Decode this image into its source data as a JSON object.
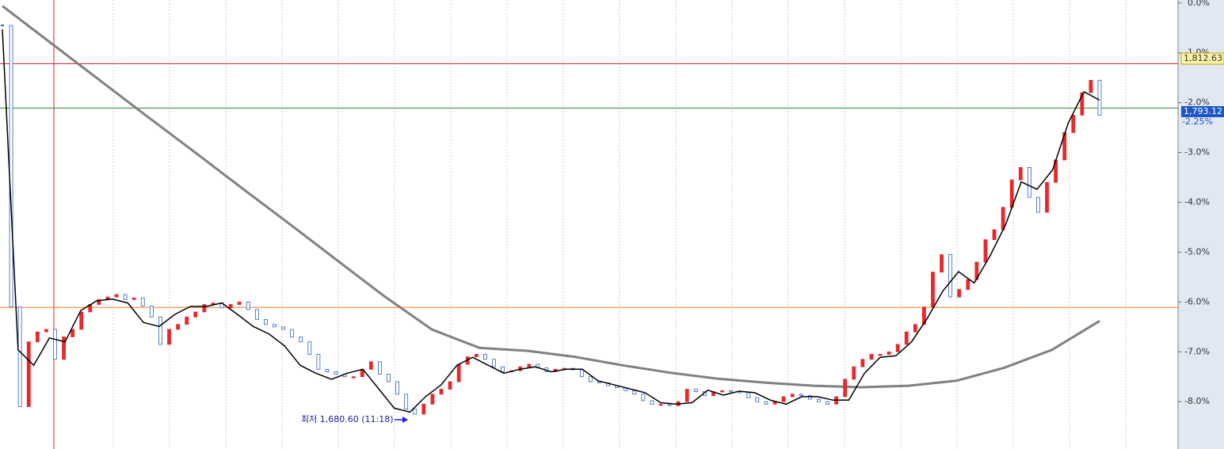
{
  "chart_data": {
    "type": "candlestick",
    "ylim": [
      -8.95,
      0.06
    ],
    "yticks": [
      {
        "value": 0,
        "label": "0.0%"
      },
      {
        "value": -1,
        "label": "-1.0%"
      },
      {
        "value": -2,
        "label": "-2.0%"
      },
      {
        "value": -3,
        "label": "-3.0%"
      },
      {
        "value": -4,
        "label": "-4.0%"
      },
      {
        "value": -5,
        "label": "-5.0%"
      },
      {
        "value": -6,
        "label": "-6.0%"
      },
      {
        "value": -7,
        "label": "-7.0%"
      },
      {
        "value": -8,
        "label": "-8.0%"
      }
    ],
    "up_color": "#e8282b",
    "down_color": "#2a62c4",
    "values": [
      -0.45,
      -6.1,
      -8.1,
      -6.8,
      -6.6,
      -6.55,
      -7.15,
      -6.7,
      -6.55,
      -6.2,
      -6.05,
      -5.95,
      -5.9,
      -5.85,
      -5.95,
      -5.92,
      -6.08,
      -6.3,
      -6.85,
      -6.55,
      -6.45,
      -6.3,
      -6.2,
      -6.05,
      -6.02,
      -6.12,
      -6.05,
      -6.0,
      -6.15,
      -6.35,
      -6.45,
      -6.5,
      -6.55,
      -6.7,
      -6.8,
      -7.05,
      -7.35,
      -7.4,
      -7.45,
      -7.5,
      -7.5,
      -7.35,
      -7.2,
      -7.45,
      -7.6,
      -7.85,
      -8.15,
      -8.25,
      -8.05,
      -7.85,
      -7.75,
      -7.6,
      -7.25,
      -7.1,
      -7.05,
      -7.15,
      -7.3,
      -7.4,
      -7.38,
      -7.3,
      -7.25,
      -7.32,
      -7.4,
      -7.35,
      -7.33,
      -7.36,
      -7.5,
      -7.6,
      -7.62,
      -7.68,
      -7.72,
      -7.78,
      -7.85,
      -7.98,
      -8.05,
      -8.05,
      -8.08,
      -8.0,
      -7.75,
      -7.8,
      -7.88,
      -7.8,
      -7.78,
      -7.8,
      -7.82,
      -7.92,
      -8.0,
      -8.05,
      -8.0,
      -7.9,
      -7.85,
      -7.88,
      -7.95,
      -8.0,
      -8.05,
      -7.9,
      -7.55,
      -7.3,
      -7.15,
      -7.05,
      -7.05,
      -7.0,
      -6.85,
      -6.6,
      -6.45,
      -6.1,
      -5.4,
      -5.05,
      -5.9,
      -5.75,
      -5.55,
      -5.2,
      -4.75,
      -4.55,
      -4.1,
      -3.55,
      -3.3,
      -3.9,
      -4.2,
      -3.6,
      -3.15,
      -2.6,
      -2.25,
      -1.8,
      -1.55,
      -2.25
    ],
    "series": [
      {
        "color": "#000000",
        "values": [
          -0.53,
          -6.96,
          -7.27,
          -6.72,
          -6.8,
          -6.17,
          -5.98,
          -5.94,
          -6.02,
          -6.41,
          -6.49,
          -6.25,
          -6.09,
          -6.09,
          -6.02,
          -6.25,
          -6.49,
          -6.64,
          -6.88,
          -7.27,
          -7.43,
          -7.55,
          -7.43,
          -7.35,
          -7.74,
          -8.13,
          -8.21,
          -7.9,
          -7.66,
          -7.27,
          -7.11,
          -7.27,
          -7.43,
          -7.35,
          -7.3,
          -7.4,
          -7.35,
          -7.35,
          -7.58,
          -7.66,
          -7.74,
          -7.82,
          -8.02,
          -8.05,
          -8.02,
          -7.77,
          -7.87,
          -7.79,
          -7.82,
          -7.97,
          -8.05,
          -7.9,
          -7.9,
          -7.97,
          -7.97,
          -7.43,
          -7.11,
          -7.08,
          -6.8,
          -6.33,
          -5.78,
          -5.39,
          -5.62,
          -5.08,
          -4.45,
          -3.59,
          -3.74,
          -3.35,
          -2.41,
          -1.78,
          -1.95
        ]
      },
      {
        "color": "#808080",
        "values": [
          -0.06,
          -0.79,
          -1.52,
          -2.25,
          -2.97,
          -3.7,
          -4.42,
          -5.15,
          -5.88,
          -6.55,
          -6.92,
          -6.98,
          -7.1,
          -7.27,
          -7.42,
          -7.54,
          -7.62,
          -7.68,
          -7.71,
          -7.68,
          -7.58,
          -7.32,
          -6.96,
          -6.38
        ]
      }
    ],
    "reference_lines": [
      {
        "value": -1.22,
        "color": "#e02020"
      },
      {
        "value": -2.11,
        "color": "#2a8a2a"
      },
      {
        "value": -6.11,
        "color": "#ff7f27"
      }
    ],
    "price_labels": [
      "1,812.63",
      "1,793.12",
      "-2.25%"
    ],
    "annotation": "최저 1,680.60 (11:18)"
  }
}
